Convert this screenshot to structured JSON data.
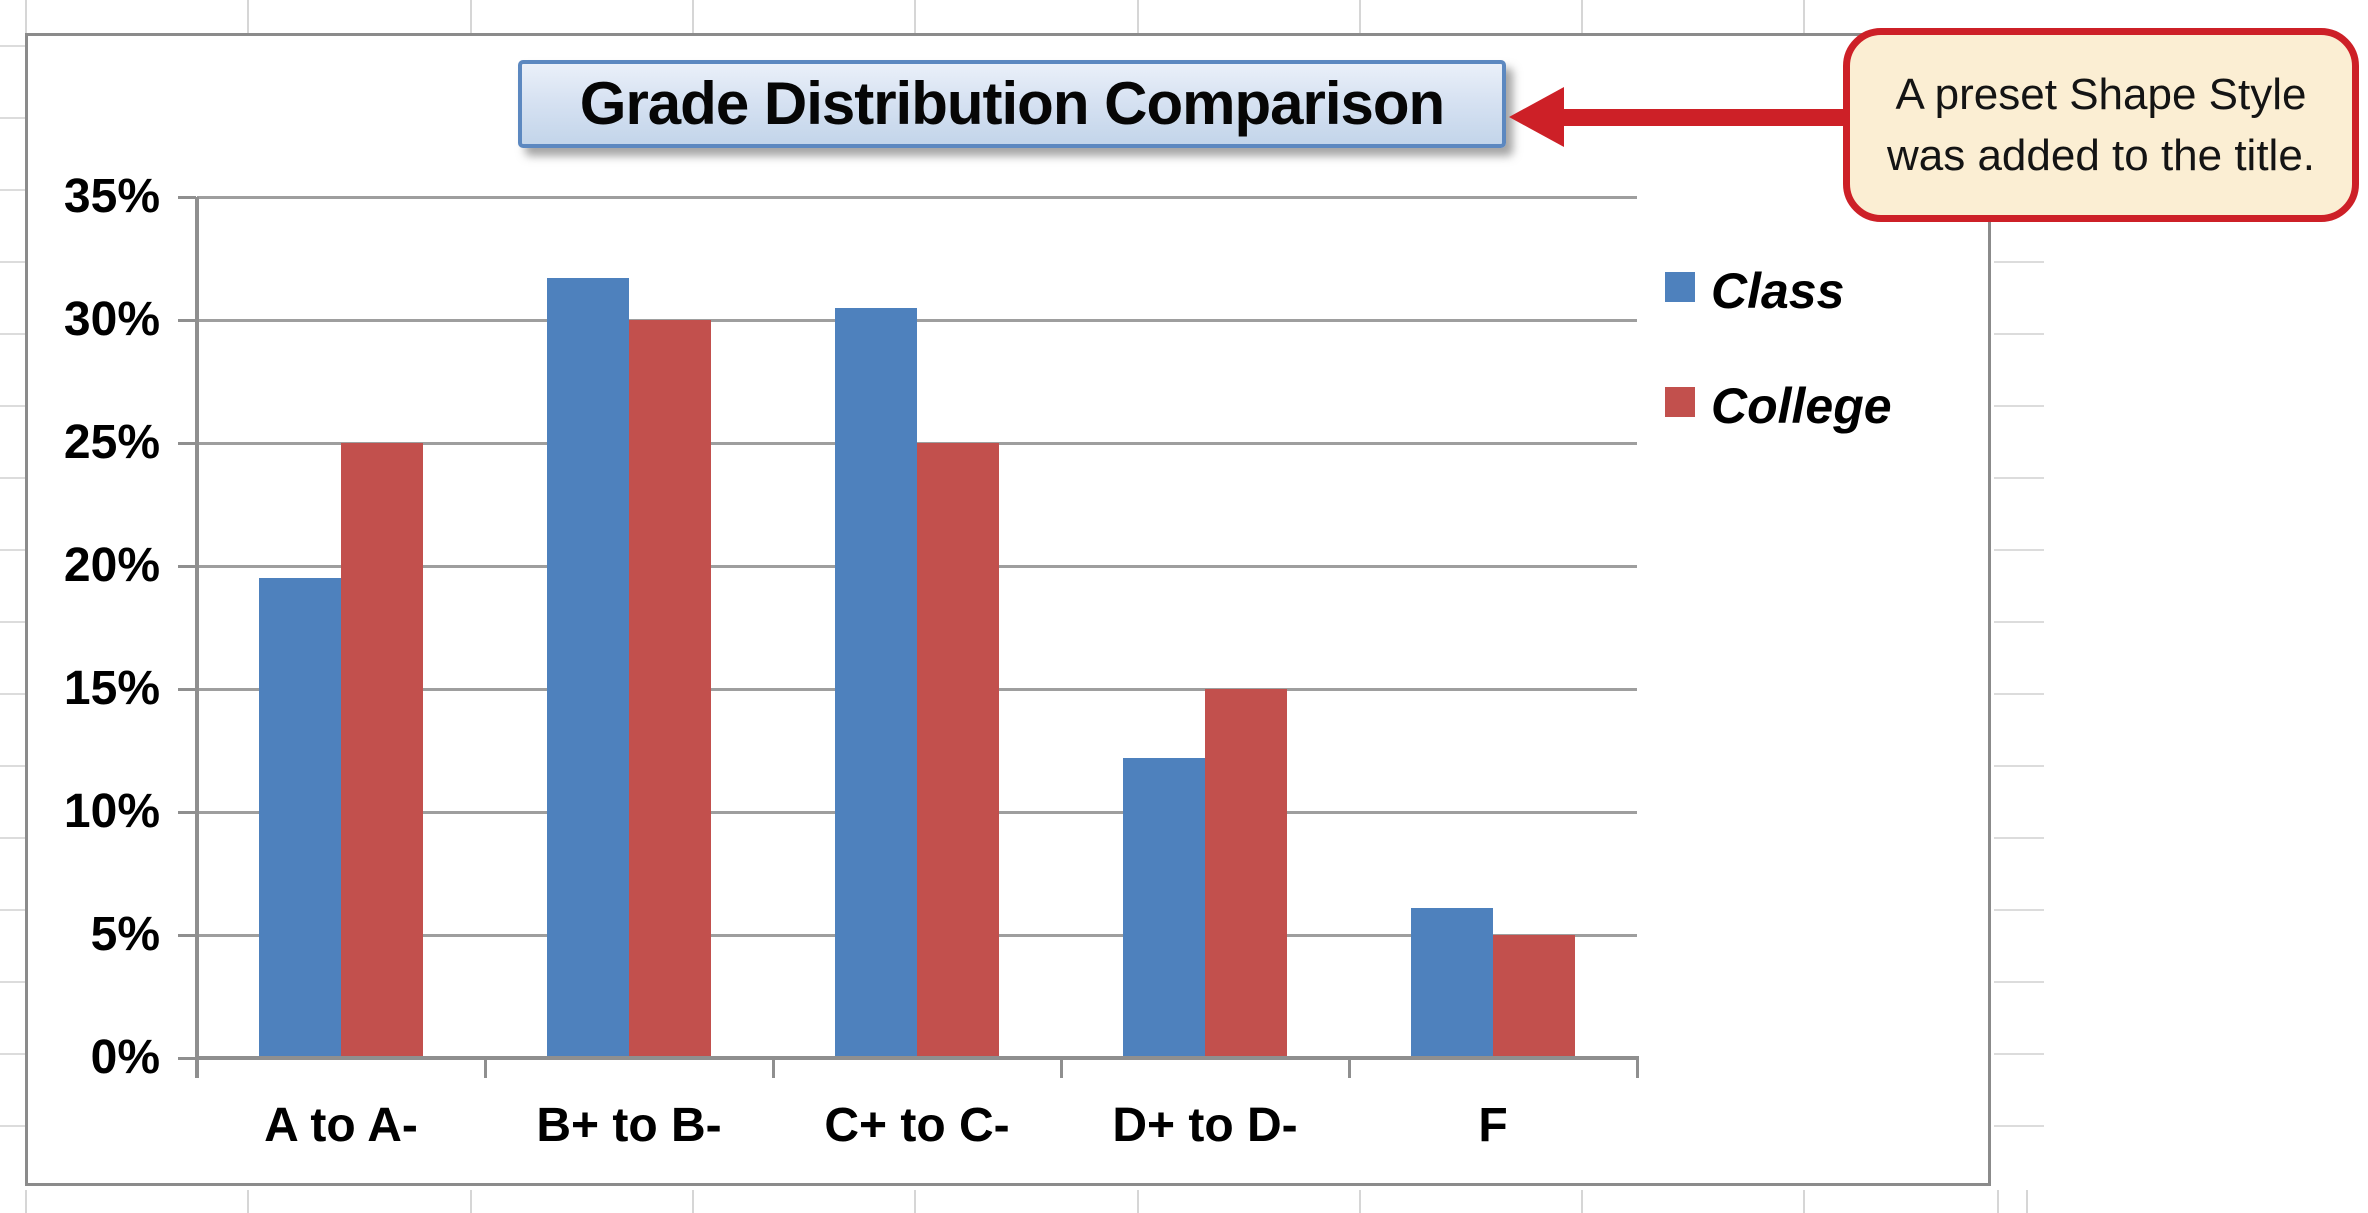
{
  "chart_data": {
    "type": "bar",
    "title": "Grade Distribution Comparison",
    "categories": [
      "A to A-",
      "B+ to B-",
      "C+ to C-",
      "D+ to D-",
      "F"
    ],
    "series": [
      {
        "name": "Class",
        "color": "#4e81bd",
        "values": [
          19.5,
          31.7,
          30.5,
          12.2,
          6.1
        ]
      },
      {
        "name": "College",
        "color": "#c2504d",
        "values": [
          25,
          30,
          25,
          15,
          5
        ]
      }
    ],
    "xlabel": "",
    "ylabel": "",
    "ylim": [
      0,
      35
    ],
    "y_tick_step": 5,
    "y_tick_labels": [
      "0%",
      "5%",
      "10%",
      "15%",
      "20%",
      "25%",
      "30%",
      "35%"
    ],
    "grid": true,
    "legend_position": "right",
    "legend_style": "bold italic"
  },
  "annotation": {
    "text": "A preset Shape Style was added to the title.",
    "accent_color": "#cd2027",
    "fill_color": "#fbeed3"
  },
  "colors": {
    "series_class": "#4e81bd",
    "series_college": "#c2504d",
    "chart_gridline": "#9e9e9e",
    "annotation_red": "#cd2027"
  }
}
